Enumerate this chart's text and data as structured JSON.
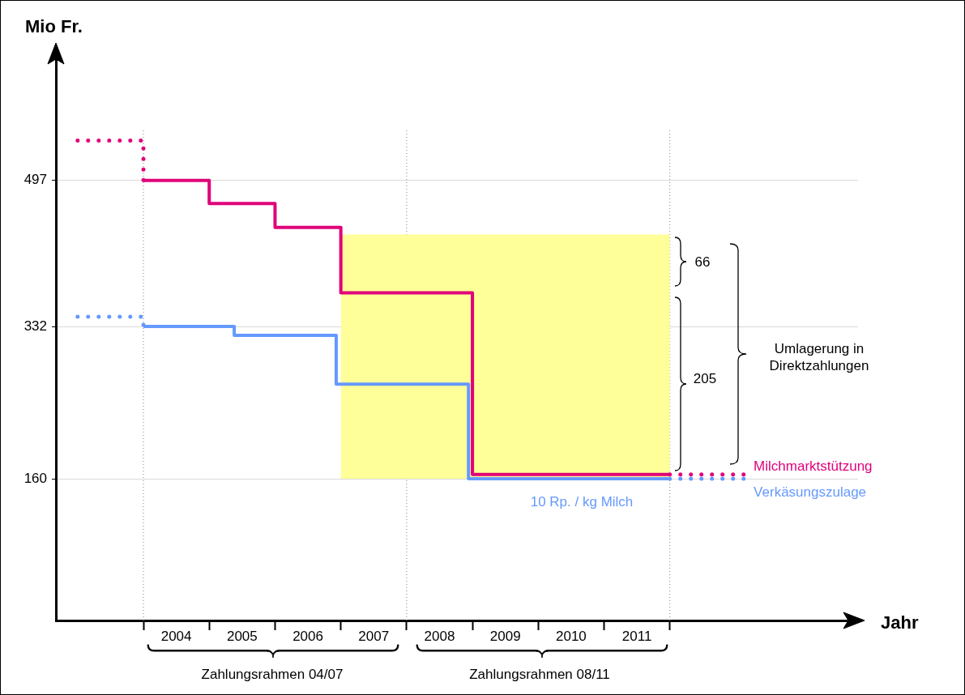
{
  "chart_data": {
    "type": "step",
    "xlabel": "Jahr",
    "ylabel": "Mio Fr.",
    "xlim": [
      2002.67,
      2014.86
    ],
    "ylim": [
      0,
      645
    ],
    "xticks": [
      {
        "value": 2004,
        "label": null
      },
      {
        "value": 2004.5,
        "label": "2004"
      },
      {
        "value": 2005,
        "label": null
      },
      {
        "value": 2005.5,
        "label": "2005"
      },
      {
        "value": 2006,
        "label": null
      },
      {
        "value": 2006.5,
        "label": "2006"
      },
      {
        "value": 2007,
        "label": null
      },
      {
        "value": 2007.5,
        "label": "2007"
      },
      {
        "value": 2008,
        "label": null
      },
      {
        "value": 2008.5,
        "label": "2008"
      },
      {
        "value": 2009,
        "label": null
      },
      {
        "value": 2009.5,
        "label": "2009"
      },
      {
        "value": 2010,
        "label": null
      },
      {
        "value": 2010.5,
        "label": "2010"
      },
      {
        "value": 2011,
        "label": null
      },
      {
        "value": 2011.5,
        "label": "2011"
      },
      {
        "value": 2012,
        "label": null
      }
    ],
    "yticks": [
      160,
      332,
      497
    ],
    "grid": "y",
    "legend": false,
    "marker": "none",
    "series": [
      {
        "color": "#e0007a",
        "line_style": "dotted",
        "x": [
          2003,
          2004
        ],
        "values": [
          542,
          497
        ]
      },
      {
        "color": "#e0007a",
        "line_style": "solid",
        "x": [
          2004,
          2005,
          2006,
          2007,
          2009,
          2012
        ],
        "values": [
          497,
          471,
          444,
          370,
          165,
          165
        ],
        "lower": [
          null,
          null,
          null,
          160,
          160,
          160
        ],
        "upper": [
          null,
          null,
          null,
          436,
          436,
          436
        ]
      },
      {
        "name": "Milchmarktstützung",
        "color": "#e0007a",
        "line_style": "dotted",
        "x": [
          2012,
          2013.15
        ],
        "values": [
          165,
          165
        ]
      },
      {
        "color": "#6699ff",
        "line_style": "dotted",
        "x": [
          2003,
          2004
        ],
        "values": [
          343,
          332
        ]
      },
      {
        "color": "#6699ff",
        "line_style": "solid",
        "x": [
          2004,
          2005.38,
          2006.93,
          2008.94,
          2012
        ],
        "values": [
          332,
          322,
          267,
          160,
          160
        ]
      },
      {
        "name": "Verkäsungszulage",
        "color": "#6699ff",
        "line_style": "dotted",
        "x": [
          2012,
          2013.15
        ],
        "values": [
          160,
          160
        ]
      }
    ],
    "ref_lines": [
      {
        "axis": "x",
        "value": 2004,
        "color": "#808080",
        "line_style": "dotted"
      },
      {
        "axis": "x",
        "value": 2008,
        "color": "#808080",
        "line_style": "dotted"
      },
      {
        "axis": "x",
        "value": 2012,
        "color": "#808080",
        "line_style": "dotted"
      }
    ],
    "annotations": [
      "66",
      "205",
      "Umlagerung in Direktzahlungen",
      "10 Rp. / kg Milch",
      "Zahlungsrahmen 04/07",
      "Zahlungsrahmen 08/11"
    ]
  }
}
